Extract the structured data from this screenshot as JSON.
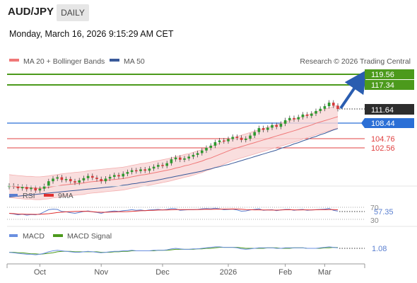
{
  "header": {
    "symbol": "AUD/JPY",
    "timeframe": "DAILY",
    "datetime": "Monday, March 16, 2026 9:15:29 AM CET"
  },
  "legend": {
    "ma20": "MA 20 + Bollinger Bands",
    "ma50": "MA 50",
    "credit": "Research © 2026 Trading Central",
    "rsi": "RSI",
    "rsi_ma": "9MA",
    "macd": "MACD",
    "macd_signal": "MACD Signal"
  },
  "colors": {
    "candle_up": "#2f9a2f",
    "candle_down": "#d63a3a",
    "ma20": "#f07878",
    "ma50": "#3a5a9a",
    "bollinger_fill": "#f8d6d6",
    "resistance": "#4c9a1c",
    "pivot": "#2b6fd6",
    "support": "#e04040",
    "arrow": "#2a5db0",
    "rsi": "#5a7fd0",
    "rsi_ma": "#e03030",
    "macd": "#6a8fe0",
    "macd_signal": "#4c9a1c"
  },
  "levels": {
    "resistance_1": "119.56",
    "resistance_2": "117.34",
    "last_price": "111.64",
    "pivot": "108.44",
    "support_1": "104.76",
    "support_2": "102.56"
  },
  "rsi": {
    "levels": [
      "70",
      "30"
    ],
    "value": "57.35"
  },
  "macd": {
    "value": "1.08"
  },
  "chart_data": {
    "type": "candlestick",
    "x_labels": [
      "Oct",
      "Nov",
      "Dec",
      "2026",
      "Feb",
      "Mar"
    ],
    "ylim": [
      88,
      122
    ],
    "closes": [
      94.2,
      94.0,
      93.6,
      93.9,
      93.4,
      93.7,
      93.1,
      93.5,
      94.1,
      95.2,
      95.8,
      96.1,
      95.5,
      95.7,
      95.2,
      94.9,
      95.4,
      95.9,
      96.4,
      96.0,
      95.7,
      95.2,
      95.8,
      96.2,
      96.6,
      96.3,
      96.9,
      97.3,
      97.7,
      97.5,
      97.9,
      97.6,
      98.1,
      98.5,
      98.9,
      98.7,
      99.3,
      100.2,
      100.6,
      100.1,
      100.4,
      100.8,
      101.2,
      101.6,
      102.2,
      102.8,
      103.3,
      104.1,
      104.5,
      104.3,
      104.8,
      105.3,
      105.1,
      104.6,
      104.9,
      105.6,
      106.4,
      107.3,
      106.9,
      107.4,
      108.0,
      107.6,
      108.3,
      109.1,
      109.6,
      109.3,
      109.8,
      110.4,
      110.1,
      110.6,
      111.2,
      111.7,
      112.3,
      113.1,
      112.4,
      111.64
    ],
    "ma20": [
      94.1,
      94.0,
      93.9,
      93.8,
      93.7,
      93.7,
      93.6,
      93.6,
      93.7,
      93.8,
      94.0,
      94.1,
      94.3,
      94.4,
      94.5,
      94.6,
      94.7,
      94.8,
      95.0,
      95.1,
      95.2,
      95.3,
      95.4,
      95.5,
      95.6,
      95.7,
      95.8,
      96.0,
      96.2,
      96.4,
      96.6,
      96.7,
      96.9,
      97.1,
      97.3,
      97.5,
      97.7,
      97.9,
      98.2,
      98.4,
      98.7,
      98.9,
      99.2,
      99.5,
      99.8,
      100.2,
      100.5,
      100.9,
      101.3,
      101.7,
      102.1,
      102.5,
      102.8,
      103.1,
      103.4,
      103.7,
      104.0,
      104.3,
      104.6,
      104.9,
      105.2,
      105.5,
      105.8,
      106.1,
      106.4,
      106.7,
      107.0,
      107.4,
      107.7,
      108.0,
      108.4,
      108.7,
      109.0,
      109.3,
      109.6,
      109.9
    ],
    "ma50": [
      91.6,
      91.7,
      91.8,
      91.9,
      92.0,
      92.1,
      92.2,
      92.3,
      92.4,
      92.5,
      92.6,
      92.7,
      92.8,
      92.9,
      93.0,
      93.1,
      93.2,
      93.3,
      93.4,
      93.5,
      93.6,
      93.7,
      93.8,
      93.9,
      94.0,
      94.1,
      94.3,
      94.4,
      94.6,
      94.7,
      94.9,
      95.0,
      95.2,
      95.3,
      95.5,
      95.7,
      95.9,
      96.1,
      96.3,
      96.5,
      96.7,
      96.9,
      97.1,
      97.3,
      97.5,
      97.8,
      98.0,
      98.3,
      98.5,
      98.8,
      99.0,
      99.3,
      99.6,
      99.9,
      100.2,
      100.5,
      100.8,
      101.1,
      101.4,
      101.7,
      102.0,
      102.3,
      102.7,
      103.0,
      103.3,
      103.7,
      104.0,
      104.4,
      104.7,
      105.1,
      105.4,
      105.8,
      106.1,
      106.5,
      106.9,
      107.2
    ],
    "rsi": [
      50,
      48,
      45,
      47,
      44,
      46,
      45,
      48,
      55,
      62,
      64,
      63,
      56,
      55,
      52,
      50,
      53,
      56,
      58,
      55,
      53,
      50,
      54,
      56,
      58,
      56,
      59,
      60,
      62,
      60,
      61,
      59,
      61,
      62,
      63,
      61,
      63,
      66,
      65,
      60,
      61,
      62,
      62,
      63,
      65,
      66,
      65,
      67,
      65,
      62,
      63,
      64,
      61,
      57,
      58,
      61,
      63,
      65,
      60,
      61,
      62,
      59,
      61,
      63,
      63,
      60,
      62,
      63,
      60,
      61,
      62,
      63,
      64,
      66,
      60,
      57.35
    ],
    "macd": [
      0.2,
      0.1,
      0.0,
      -0.1,
      -0.2,
      -0.2,
      -0.3,
      -0.2,
      0.0,
      0.3,
      0.5,
      0.6,
      0.5,
      0.4,
      0.3,
      0.2,
      0.2,
      0.3,
      0.4,
      0.3,
      0.2,
      0.1,
      0.2,
      0.3,
      0.4,
      0.4,
      0.5,
      0.5,
      0.6,
      0.5,
      0.5,
      0.5,
      0.5,
      0.6,
      0.6,
      0.6,
      0.7,
      0.9,
      1.0,
      0.9,
      0.8,
      0.8,
      0.9,
      0.9,
      1.0,
      1.1,
      1.2,
      1.3,
      1.3,
      1.2,
      1.2,
      1.2,
      1.1,
      0.9,
      0.8,
      0.9,
      1.0,
      1.1,
      1.1,
      1.1,
      1.1,
      1.0,
      1.0,
      1.1,
      1.1,
      1.1,
      1.1,
      1.1,
      1.0,
      1.0,
      1.0,
      1.1,
      1.2,
      1.3,
      1.2,
      1.08
    ],
    "macd_signal": [
      0.2,
      0.2,
      0.1,
      0.1,
      0.0,
      -0.1,
      -0.1,
      -0.2,
      -0.1,
      0.0,
      0.1,
      0.3,
      0.4,
      0.4,
      0.4,
      0.3,
      0.3,
      0.3,
      0.3,
      0.3,
      0.3,
      0.2,
      0.2,
      0.2,
      0.3,
      0.3,
      0.4,
      0.4,
      0.5,
      0.5,
      0.5,
      0.5,
      0.5,
      0.5,
      0.6,
      0.6,
      0.6,
      0.7,
      0.8,
      0.8,
      0.8,
      0.8,
      0.8,
      0.9,
      0.9,
      1.0,
      1.0,
      1.1,
      1.2,
      1.2,
      1.2,
      1.2,
      1.2,
      1.1,
      1.0,
      1.0,
      1.0,
      1.0,
      1.0,
      1.1,
      1.1,
      1.1,
      1.0,
      1.0,
      1.0,
      1.1,
      1.1,
      1.1,
      1.0,
      1.0,
      1.0,
      1.0,
      1.1,
      1.1,
      1.2,
      1.15
    ]
  }
}
